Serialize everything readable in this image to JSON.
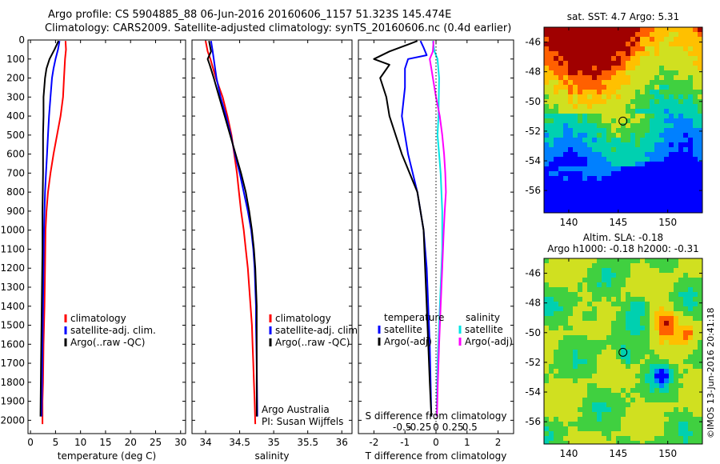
{
  "header": {
    "line1": "Argo profile: CS 5904885_88 06-Jun-2016 20160606_1157 51.323S 145.474E",
    "line2": "Climatology: CARS2009. Satellite-adjusted climatology: synTS_20160606.nc (0.4d earlier)"
  },
  "colors": {
    "climatology": "#ff0000",
    "satellite": "#0000ff",
    "argo": "#000000",
    "sat_salinity": "#00e5e5",
    "argo_salinity_diff": "#ff00ff"
  },
  "chart_data": [
    {
      "type": "line",
      "name": "temperature-profile",
      "xlabel": "temperature (deg C)",
      "xlim": [
        -0.5,
        31
      ],
      "xticks": [
        0,
        5,
        10,
        15,
        20,
        25,
        30
      ],
      "ylim": [
        2070,
        0
      ],
      "yticks": [
        0,
        100,
        200,
        300,
        400,
        500,
        600,
        700,
        800,
        900,
        1000,
        1100,
        1200,
        1300,
        1400,
        1500,
        1600,
        1700,
        1800,
        1900,
        2000
      ],
      "legend": [
        "climatology",
        "satellite-adj. clim.",
        "Argo(..raw -QC)"
      ],
      "legend_position": "center-right",
      "series": [
        {
          "key": "climatology",
          "points": [
            [
              7.0,
              5
            ],
            [
              7.1,
              50
            ],
            [
              6.9,
              100
            ],
            [
              6.7,
              200
            ],
            [
              6.5,
              300
            ],
            [
              6.0,
              400
            ],
            [
              5.3,
              500
            ],
            [
              4.6,
              600
            ],
            [
              4.0,
              700
            ],
            [
              3.5,
              800
            ],
            [
              3.2,
              900
            ],
            [
              3.0,
              1000
            ],
            [
              2.9,
              1200
            ],
            [
              2.8,
              1400
            ],
            [
              2.6,
              1600
            ],
            [
              2.5,
              1800
            ],
            [
              2.4,
              1900
            ],
            [
              2.4,
              2020
            ]
          ]
        },
        {
          "key": "satellite",
          "points": [
            [
              5.8,
              5
            ],
            [
              5.5,
              50
            ],
            [
              5.0,
              100
            ],
            [
              4.6,
              150
            ],
            [
              4.3,
              200
            ],
            [
              4.0,
              300
            ],
            [
              3.7,
              400
            ],
            [
              3.5,
              500
            ],
            [
              3.3,
              600
            ],
            [
              3.1,
              700
            ],
            [
              2.9,
              800
            ],
            [
              2.8,
              900
            ],
            [
              2.7,
              1000
            ],
            [
              2.6,
              1200
            ],
            [
              2.5,
              1400
            ],
            [
              2.4,
              1600
            ],
            [
              2.3,
              1800
            ],
            [
              2.2,
              1980
            ]
          ]
        },
        {
          "key": "argo",
          "points": [
            [
              5.6,
              5
            ],
            [
              4.8,
              50
            ],
            [
              3.8,
              100
            ],
            [
              3.2,
              150
            ],
            [
              2.9,
              200
            ],
            [
              2.6,
              300
            ],
            [
              2.6,
              400
            ],
            [
              2.5,
              500
            ],
            [
              2.5,
              700
            ],
            [
              2.4,
              900
            ],
            [
              2.4,
              1100
            ],
            [
              2.3,
              1300
            ],
            [
              2.2,
              1500
            ],
            [
              2.1,
              1700
            ],
            [
              2.0,
              1980
            ]
          ]
        }
      ]
    },
    {
      "type": "line",
      "name": "salinity-profile",
      "xlabel": "salinity",
      "xlim": [
        33.8,
        36.15
      ],
      "xticks": [
        34,
        34.5,
        35,
        35.5,
        36
      ],
      "xtick_labels": [
        "34",
        "34.5",
        "35",
        "35.5",
        "36"
      ],
      "ylim": [
        2070,
        0
      ],
      "legend": [
        "climatology",
        "satellite-adj. clim.",
        "Argo(..raw -QC)"
      ],
      "legend_position": "center-right",
      "annotation": [
        "Argo Australia",
        "PI: Susan Wijffels"
      ],
      "series": [
        {
          "key": "climatology",
          "points": [
            [
              34.0,
              5
            ],
            [
              34.03,
              60
            ],
            [
              34.07,
              100
            ],
            [
              34.15,
              200
            ],
            [
              34.25,
              300
            ],
            [
              34.32,
              400
            ],
            [
              34.38,
              500
            ],
            [
              34.42,
              600
            ],
            [
              34.46,
              700
            ],
            [
              34.49,
              800
            ],
            [
              34.52,
              900
            ],
            [
              34.56,
              1000
            ],
            [
              34.59,
              1100
            ],
            [
              34.62,
              1200
            ],
            [
              34.64,
              1300
            ],
            [
              34.66,
              1400
            ],
            [
              34.68,
              1500
            ],
            [
              34.69,
              1600
            ],
            [
              34.7,
              1700
            ],
            [
              34.71,
              1800
            ],
            [
              34.72,
              1900
            ],
            [
              34.73,
              2020
            ]
          ]
        },
        {
          "key": "satellite",
          "points": [
            [
              34.08,
              5
            ],
            [
              34.1,
              50
            ],
            [
              34.12,
              100
            ],
            [
              34.16,
              200
            ],
            [
              34.22,
              300
            ],
            [
              34.3,
              400
            ],
            [
              34.37,
              500
            ],
            [
              34.43,
              600
            ],
            [
              34.5,
              700
            ],
            [
              34.56,
              800
            ],
            [
              34.62,
              900
            ],
            [
              34.67,
              1000
            ],
            [
              34.7,
              1100
            ],
            [
              34.72,
              1200
            ],
            [
              34.73,
              1300
            ],
            [
              34.74,
              1400
            ],
            [
              34.74,
              1500
            ],
            [
              34.75,
              1700
            ],
            [
              34.76,
              1980
            ]
          ]
        },
        {
          "key": "argo",
          "points": [
            [
              34.05,
              5
            ],
            [
              34.08,
              60
            ],
            [
              34.03,
              100
            ],
            [
              34.06,
              130
            ],
            [
              34.12,
              200
            ],
            [
              34.2,
              300
            ],
            [
              34.28,
              400
            ],
            [
              34.36,
              500
            ],
            [
              34.44,
              600
            ],
            [
              34.52,
              700
            ],
            [
              34.59,
              800
            ],
            [
              34.64,
              900
            ],
            [
              34.68,
              1000
            ],
            [
              34.71,
              1100
            ],
            [
              34.73,
              1200
            ],
            [
              34.74,
              1300
            ],
            [
              34.75,
              1400
            ],
            [
              34.75,
              1600
            ],
            [
              34.75,
              1800
            ],
            [
              34.75,
              1980
            ]
          ]
        }
      ]
    },
    {
      "type": "line",
      "name": "difference-from-climatology",
      "xlabel": "T difference from climatology",
      "xlabel_top": "S difference from climatology",
      "xlim": [
        -2.5,
        2.5
      ],
      "xticks": [
        -2,
        -1,
        0,
        1,
        2
      ],
      "sticks": [
        -0.5,
        -0.25,
        0,
        0.25,
        0.5
      ],
      "stick_labels": [
        "-0.5",
        "-0.25",
        "0",
        "0.25",
        "0.5"
      ],
      "ylim": [
        2070,
        0
      ],
      "legend_left_title": "temperature",
      "legend_left": [
        "satellite",
        "Argo(-adj)"
      ],
      "legend_right_title": "salinity",
      "legend_right": [
        "satellite",
        "Argo(-adj)"
      ],
      "series": [
        {
          "key": "temp-satellite",
          "points": [
            [
              -0.5,
              5
            ],
            [
              -0.4,
              40
            ],
            [
              -0.3,
              80
            ],
            [
              -0.9,
              100
            ],
            [
              -1.0,
              150
            ],
            [
              -1.0,
              250
            ],
            [
              -1.1,
              400
            ],
            [
              -0.9,
              600
            ],
            [
              -0.6,
              800
            ],
            [
              -0.4,
              1000
            ],
            [
              -0.3,
              1200
            ],
            [
              -0.25,
              1400
            ],
            [
              -0.2,
              1600
            ],
            [
              -0.15,
              1980
            ]
          ]
        },
        {
          "key": "temp-argo",
          "points": [
            [
              -0.6,
              5
            ],
            [
              -1.0,
              30
            ],
            [
              -1.5,
              60
            ],
            [
              -2.0,
              100
            ],
            [
              -1.5,
              130
            ],
            [
              -1.8,
              200
            ],
            [
              -1.6,
              300
            ],
            [
              -1.5,
              400
            ],
            [
              -1.1,
              600
            ],
            [
              -0.6,
              800
            ],
            [
              -0.4,
              1000
            ],
            [
              -0.35,
              1200
            ],
            [
              -0.3,
              1400
            ],
            [
              -0.25,
              1600
            ],
            [
              -0.2,
              1800
            ],
            [
              -0.15,
              1980
            ]
          ]
        },
        {
          "key": "sal-satellite",
          "points": [
            [
              -0.1,
              5
            ],
            [
              -0.05,
              60
            ],
            [
              0.05,
              100
            ],
            [
              0.1,
              200
            ],
            [
              0.08,
              400
            ],
            [
              0.05,
              500
            ],
            [
              0.1,
              600
            ],
            [
              0.15,
              700
            ],
            [
              0.2,
              900
            ],
            [
              0.2,
              1100
            ],
            [
              0.15,
              1300
            ],
            [
              0.1,
              1500
            ],
            [
              0.05,
              1700
            ],
            [
              0.02,
              1980
            ]
          ]
        },
        {
          "key": "sal-argo",
          "points": [
            [
              -0.08,
              5
            ],
            [
              -0.1,
              60
            ],
            [
              -0.2,
              100
            ],
            [
              -0.15,
              150
            ],
            [
              -0.1,
              200
            ],
            [
              0.0,
              300
            ],
            [
              0.12,
              400
            ],
            [
              0.2,
              500
            ],
            [
              0.26,
              600
            ],
            [
              0.3,
              700
            ],
            [
              0.32,
              800
            ],
            [
              0.28,
              900
            ],
            [
              0.25,
              1000
            ],
            [
              0.2,
              1200
            ],
            [
              0.15,
              1400
            ],
            [
              0.1,
              1600
            ],
            [
              0.06,
              1800
            ],
            [
              0.03,
              1980
            ]
          ]
        }
      ]
    },
    {
      "type": "heatmap",
      "name": "sst-map",
      "title": "sat. SST: 4.7 Argo: 5.31",
      "xlim": [
        137.5,
        153.5
      ],
      "ylim": [
        -57.5,
        -45
      ],
      "xticks": [
        140,
        145,
        150
      ],
      "yticks": [
        -46,
        -48,
        -50,
        -52,
        -54,
        -56
      ],
      "argo_position": [
        145.474,
        -51.323
      ]
    },
    {
      "type": "heatmap",
      "name": "sla-map",
      "title_lines": [
        "Altim. SLA: -0.18",
        "Argo h1000: -0.18 h2000: -0.31"
      ],
      "xlim": [
        137.5,
        153.5
      ],
      "ylim": [
        -57.5,
        -45
      ],
      "xticks": [
        140,
        145,
        150
      ],
      "yticks": [
        -46,
        -48,
        -50,
        -52,
        -54,
        -56
      ],
      "argo_position": [
        145.474,
        -51.323
      ],
      "credit": "©IMOS 13-Jun-2016 20:41:18"
    }
  ]
}
